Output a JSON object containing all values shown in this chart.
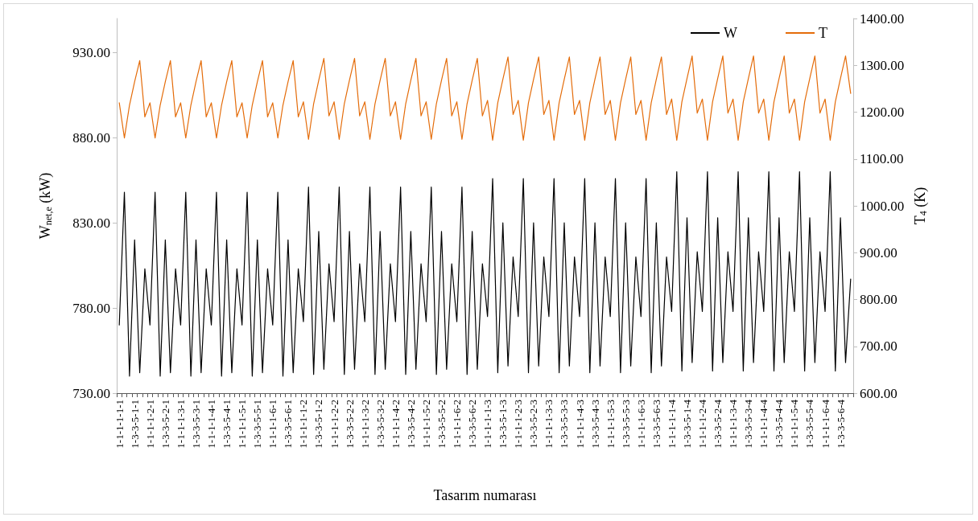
{
  "chart_data": {
    "type": "line",
    "xlabel": "Tasarım numarası",
    "ylabel": "W$_{net,e}$ (kW)",
    "y2label": "T$_{4}$ (K)",
    "categories": [
      "1-1-1-1-1-1",
      null,
      null,
      "1-3-3-5-1-1",
      null,
      null,
      "1-1-1-1-2-1",
      null,
      null,
      "1-3-3-5-2-1",
      null,
      null,
      "1-1-1-1-3-1",
      null,
      null,
      "1-3-3-5-3-1",
      null,
      null,
      "1-1-1-1-4-1",
      null,
      null,
      "1-3-3-5-4-1",
      null,
      null,
      "1-1-1-1-5-1",
      null,
      null,
      "1-3-3-5-5-1",
      null,
      null,
      "1-1-1-1-6-1",
      null,
      null,
      "1-3-3-5-6-1",
      null,
      null,
      "1-1-1-1-1-2",
      null,
      null,
      "1-3-3-5-1-2",
      null,
      null,
      "1-1-1-1-2-2",
      null,
      null,
      "1-3-3-5-2-2",
      null,
      null,
      "1-1-1-1-3-2",
      null,
      null,
      "1-3-3-5-3-2",
      null,
      null,
      "1-1-1-1-4-2",
      null,
      null,
      "1-3-3-5-4-2",
      null,
      null,
      "1-1-1-1-5-2",
      null,
      null,
      "1-3-3-5-5-2",
      null,
      null,
      "1-1-1-1-6-2",
      null,
      null,
      "1-3-3-5-6-2",
      null,
      null,
      "1-1-1-1-1-3",
      null,
      null,
      "1-3-3-5-1-3",
      null,
      null,
      "1-1-1-1-2-3",
      null,
      null,
      "1-3-3-5-2-3",
      null,
      null,
      "1-1-1-1-3-3",
      null,
      null,
      "1-3-3-5-3-3",
      null,
      null,
      "1-1-1-1-4-3",
      null,
      null,
      "1-3-3-5-4-3",
      null,
      null,
      "1-1-1-1-5-3",
      null,
      null,
      "1-3-3-5-5-3",
      null,
      null,
      "1-1-1-1-6-3",
      null,
      null,
      "1-3-3-5-6-3",
      null,
      null,
      "1-1-1-1-1-4",
      null,
      null,
      "1-3-3-5-1-4",
      null,
      null,
      "1-1-1-1-2-4",
      null,
      null,
      "1-3-3-5-2-4",
      null,
      null,
      "1-1-1-1-3-4",
      null,
      null,
      "1-3-3-5-3-4",
      null,
      null,
      "1-1-1-1-4-4",
      null,
      null,
      "1-3-3-5-4-4",
      null,
      null,
      "1-1-1-1-5-4",
      null,
      null,
      "1-3-3-5-5-4",
      null,
      null,
      "1-1-1-1-6-4",
      null,
      null,
      "1-3-3-5-6-4",
      null,
      null
    ],
    "series": [
      {
        "name": "W",
        "color": "#000000",
        "values": [
          770,
          848,
          740,
          820,
          742,
          803,
          770,
          848,
          740,
          820,
          742,
          803,
          770,
          848,
          740,
          820,
          742,
          803,
          770,
          848,
          740,
          820,
          742,
          803,
          770,
          848,
          740,
          820,
          742,
          803,
          770,
          848,
          740,
          820,
          742,
          803,
          772,
          851,
          741,
          825,
          744,
          806,
          772,
          851,
          741,
          825,
          744,
          806,
          772,
          851,
          741,
          825,
          744,
          806,
          772,
          851,
          741,
          825,
          744,
          806,
          772,
          851,
          741,
          825,
          744,
          806,
          772,
          851,
          741,
          825,
          744,
          806,
          775,
          856,
          742,
          830,
          746,
          810,
          775,
          856,
          742,
          830,
          746,
          810,
          775,
          856,
          742,
          830,
          746,
          810,
          775,
          856,
          742,
          830,
          746,
          810,
          775,
          856,
          742,
          830,
          746,
          810,
          775,
          856,
          742,
          830,
          746,
          810,
          778,
          860,
          743,
          833,
          748,
          813,
          778,
          860,
          743,
          833,
          748,
          813,
          778,
          860,
          743,
          833,
          748,
          813,
          778,
          860,
          743,
          833,
          748,
          813,
          778,
          860,
          743,
          833,
          748,
          813,
          778,
          860,
          743,
          833,
          748,
          797
        ]
      },
      {
        "name": "T",
        "color": "#e46c0a",
        "axis": "y2",
        "values": [
          1220,
          1145,
          1215,
          1265,
          1310,
          1190,
          1220,
          1145,
          1215,
          1265,
          1310,
          1190,
          1220,
          1145,
          1215,
          1265,
          1310,
          1190,
          1220,
          1145,
          1215,
          1265,
          1310,
          1190,
          1220,
          1145,
          1215,
          1265,
          1310,
          1190,
          1220,
          1145,
          1215,
          1265,
          1310,
          1190,
          1222,
          1142,
          1218,
          1268,
          1315,
          1192,
          1222,
          1142,
          1218,
          1268,
          1315,
          1192,
          1222,
          1142,
          1218,
          1268,
          1315,
          1192,
          1222,
          1142,
          1218,
          1268,
          1315,
          1192,
          1222,
          1142,
          1218,
          1268,
          1315,
          1192,
          1222,
          1142,
          1218,
          1268,
          1315,
          1192,
          1225,
          1140,
          1220,
          1270,
          1318,
          1195,
          1225,
          1140,
          1220,
          1270,
          1318,
          1195,
          1225,
          1140,
          1220,
          1270,
          1318,
          1195,
          1225,
          1140,
          1220,
          1270,
          1318,
          1195,
          1225,
          1140,
          1220,
          1270,
          1318,
          1195,
          1225,
          1140,
          1220,
          1270,
          1318,
          1195,
          1228,
          1140,
          1222,
          1272,
          1320,
          1198,
          1228,
          1140,
          1222,
          1272,
          1320,
          1198,
          1228,
          1140,
          1222,
          1272,
          1320,
          1198,
          1228,
          1140,
          1222,
          1272,
          1320,
          1198,
          1228,
          1140,
          1222,
          1272,
          1320,
          1198,
          1228,
          1140,
          1222,
          1272,
          1320,
          1240
        ]
      }
    ],
    "ylim": [
      730,
      950
    ],
    "yticks": [
      {
        "value": 730,
        "label": "730.00"
      },
      {
        "value": 780,
        "label": "780.00"
      },
      {
        "value": 830,
        "label": "830.00"
      },
      {
        "value": 880,
        "label": "880.00"
      },
      {
        "value": 930,
        "label": "930.00"
      }
    ],
    "y2lim": [
      600,
      1400
    ],
    "y2ticks": [
      {
        "value": 600,
        "label": "600.00"
      },
      {
        "value": 700,
        "label": "700.00"
      },
      {
        "value": 800,
        "label": "800.00"
      },
      {
        "value": 900,
        "label": "900.00"
      },
      {
        "value": 1000,
        "label": "1000.00"
      },
      {
        "value": 1100,
        "label": "1100.00"
      },
      {
        "value": 1200,
        "label": "1200.00"
      },
      {
        "value": 1300,
        "label": "1300.00"
      },
      {
        "value": 1400,
        "label": "1400.00"
      }
    ],
    "grid": false,
    "legend": "top right",
    "marker": "none",
    "line_style": "solid"
  }
}
